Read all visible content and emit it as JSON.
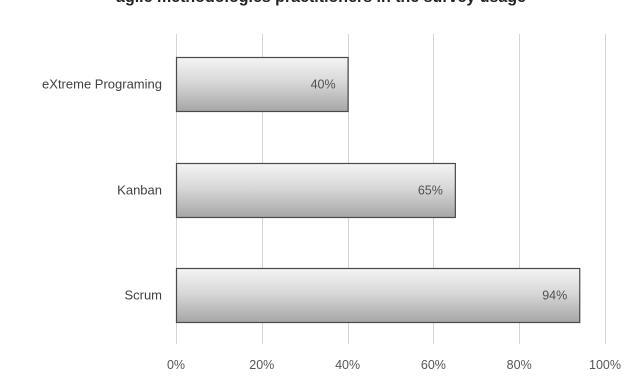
{
  "header": {
    "partial_title": "agile methodologies practitioners in the survey usage"
  },
  "chart_data": {
    "type": "bar",
    "orientation": "horizontal",
    "categories": [
      "eXtreme Programing",
      "Kanban",
      "Scrum"
    ],
    "values": [
      40,
      65,
      94
    ],
    "value_labels": [
      "40%",
      "65%",
      "94%"
    ],
    "xlim": [
      0,
      100
    ],
    "x_ticks": [
      0,
      20,
      40,
      60,
      80,
      100
    ],
    "x_tick_labels": [
      "0%",
      "20%",
      "40%",
      "60%",
      "80%",
      "100%"
    ],
    "grid": true,
    "legend": "none",
    "colors": {
      "bar_light": "#f4f4f4",
      "bar_mid": "#d8d8d8",
      "bar_dark": "#a6a6a6",
      "bar_border": "#4a4a4a",
      "grid": "#d4d4d4"
    }
  }
}
